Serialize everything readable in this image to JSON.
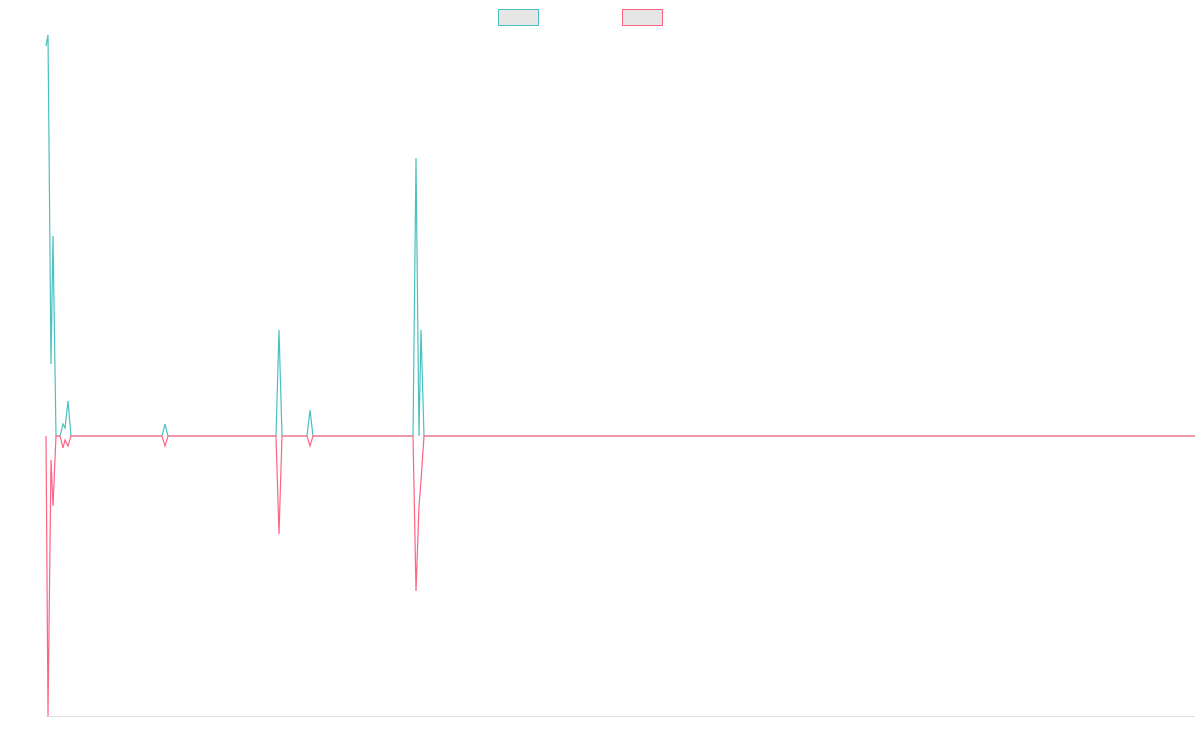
{
  "chart_data": {
    "type": "line",
    "x": [
      0,
      2,
      5,
      7,
      10,
      14,
      17,
      19,
      22,
      25,
      116,
      119,
      122,
      230,
      233,
      236,
      261,
      264,
      267,
      367,
      370,
      373,
      375,
      378,
      1149
    ],
    "xlim": [
      0,
      1149
    ],
    "ylim": [
      -280,
      401
    ],
    "legend": "top",
    "series": [
      {
        "color": "#4bc0c0",
        "values": [
          390,
          401,
          72,
          200,
          0,
          0,
          12,
          8,
          35,
          0,
          0,
          12,
          0,
          0,
          106,
          0,
          0,
          26,
          0,
          0,
          278,
          0,
          106,
          0,
          0
        ]
      },
      {
        "color": "#ff6384",
        "values": [
          0,
          -280,
          -24,
          -70,
          0,
          0,
          -12,
          -4,
          -10,
          0,
          0,
          -10,
          0,
          0,
          -98,
          0,
          0,
          -10,
          0,
          0,
          -155,
          -70,
          -45,
          0,
          0
        ]
      }
    ]
  }
}
